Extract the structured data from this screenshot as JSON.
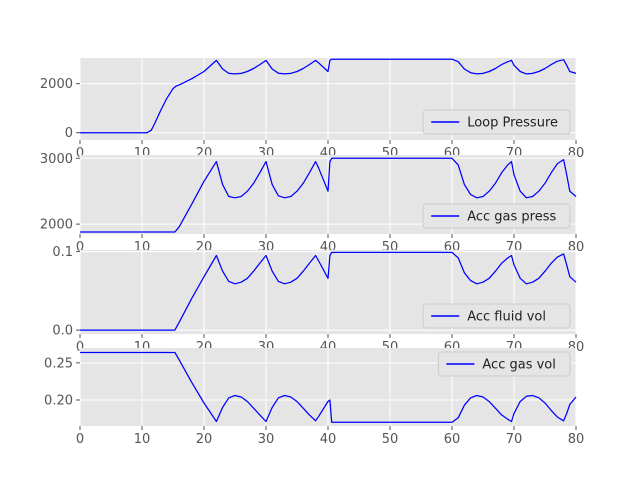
{
  "colors": {
    "series": "#0000ff",
    "panel_background": "#e5e5e5",
    "grid": "#ffffff",
    "tick_text": "#555555"
  },
  "chart_data": [
    {
      "type": "line",
      "name": "loop-pressure",
      "legend": {
        "label": "Loop Pressure",
        "placement": "lower-right"
      },
      "xlim": [
        0,
        80
      ],
      "ylim": [
        -300,
        3050
      ],
      "xticks": [
        0,
        10,
        20,
        30,
        40,
        50,
        60,
        70,
        80
      ],
      "xtick_labels": [
        "0",
        "10",
        "20",
        "30",
        "40",
        "50",
        "60",
        "70",
        "80"
      ],
      "yticks": [
        0,
        2000
      ],
      "ytick_labels": [
        "0",
        "2000"
      ],
      "grid": true,
      "series": [
        {
          "name": "Loop Pressure",
          "x": [
            0,
            10.8,
            11.5,
            12,
            13,
            14,
            15,
            15.5,
            16,
            18,
            20,
            22,
            23,
            24,
            25,
            26,
            27,
            28,
            29,
            30,
            31,
            32,
            33,
            34,
            35,
            36,
            37,
            38,
            38.5,
            40,
            40.3,
            40.6,
            45,
            50,
            55,
            60,
            61,
            62,
            63,
            64,
            65,
            66,
            67,
            68,
            69,
            69.6,
            70,
            71,
            72,
            73,
            74,
            75,
            76,
            77,
            78,
            78.5,
            79,
            80
          ],
          "y": [
            0,
            0,
            100,
            350,
            900,
            1400,
            1800,
            1900,
            1950,
            2200,
            2500,
            2950,
            2600,
            2420,
            2400,
            2420,
            2500,
            2620,
            2780,
            2950,
            2600,
            2430,
            2400,
            2420,
            2500,
            2620,
            2780,
            2950,
            2850,
            2500,
            2950,
            3000,
            3000,
            3000,
            3000,
            3000,
            2900,
            2600,
            2450,
            2400,
            2420,
            2500,
            2620,
            2780,
            2900,
            2950,
            2750,
            2500,
            2400,
            2420,
            2500,
            2620,
            2780,
            2920,
            2980,
            2750,
            2500,
            2420
          ]
        }
      ]
    },
    {
      "type": "line",
      "name": "acc-gas-press",
      "legend": {
        "label": "Acc gas press",
        "placement": "lower-right"
      },
      "xlim": [
        0,
        80
      ],
      "ylim": [
        1850,
        3050
      ],
      "xticks": [
        0,
        10,
        20,
        30,
        40,
        50,
        60,
        70,
        80
      ],
      "xtick_labels": [
        "0",
        "10",
        "20",
        "30",
        "40",
        "50",
        "60",
        "70",
        "80"
      ],
      "yticks": [
        2000,
        3000
      ],
      "ytick_labels": [
        "2000",
        "3000"
      ],
      "grid": true,
      "series": [
        {
          "name": "Acc gas press",
          "x": [
            0,
            15.3,
            16,
            18,
            20,
            22,
            23,
            24,
            25,
            26,
            27,
            28,
            29,
            30,
            31,
            32,
            33,
            34,
            35,
            36,
            37,
            38,
            38.5,
            40,
            40.3,
            40.6,
            45,
            50,
            55,
            60,
            61,
            62,
            63,
            64,
            65,
            66,
            67,
            68,
            69,
            69.6,
            70,
            71,
            72,
            73,
            74,
            75,
            76,
            77,
            78,
            78.5,
            79,
            80
          ],
          "y": [
            1880,
            1880,
            1960,
            2300,
            2650,
            2950,
            2600,
            2420,
            2400,
            2420,
            2500,
            2620,
            2780,
            2950,
            2600,
            2430,
            2400,
            2420,
            2500,
            2620,
            2780,
            2950,
            2850,
            2500,
            2950,
            3000,
            3000,
            3000,
            3000,
            3000,
            2900,
            2600,
            2450,
            2400,
            2420,
            2500,
            2620,
            2780,
            2900,
            2950,
            2750,
            2500,
            2400,
            2420,
            2500,
            2620,
            2780,
            2920,
            2980,
            2750,
            2500,
            2420
          ]
        }
      ]
    },
    {
      "type": "line",
      "name": "acc-fluid-vol",
      "legend": {
        "label": "Acc fluid vol",
        "placement": "lower-right"
      },
      "xlim": [
        0,
        80
      ],
      "ylim": [
        -0.005,
        0.102
      ],
      "xticks": [
        0,
        10,
        20,
        30,
        40,
        50,
        60,
        70,
        80
      ],
      "xtick_labels": [
        "0",
        "10",
        "20",
        "30",
        "40",
        "50",
        "60",
        "70",
        "80"
      ],
      "yticks": [
        0.0,
        0.1
      ],
      "ytick_labels": [
        "0.0",
        "0.1"
      ],
      "grid": true,
      "series": [
        {
          "name": "Acc fluid vol",
          "x": [
            0,
            15.3,
            16,
            18,
            20,
            22,
            23,
            24,
            25,
            26,
            27,
            28,
            29,
            30,
            31,
            32,
            33,
            34,
            35,
            36,
            37,
            38,
            38.5,
            40,
            40.3,
            40.6,
            45,
            50,
            55,
            60,
            61,
            62,
            63,
            64,
            65,
            66,
            67,
            68,
            69,
            69.6,
            70,
            71,
            72,
            73,
            74,
            75,
            76,
            77,
            78,
            78.5,
            79,
            80
          ],
          "y": [
            0,
            0,
            0.01,
            0.04,
            0.068,
            0.095,
            0.075,
            0.062,
            0.059,
            0.061,
            0.066,
            0.075,
            0.085,
            0.095,
            0.075,
            0.062,
            0.059,
            0.061,
            0.066,
            0.075,
            0.085,
            0.095,
            0.088,
            0.066,
            0.095,
            0.099,
            0.099,
            0.099,
            0.099,
            0.099,
            0.092,
            0.073,
            0.063,
            0.059,
            0.061,
            0.066,
            0.075,
            0.085,
            0.092,
            0.095,
            0.083,
            0.066,
            0.059,
            0.061,
            0.066,
            0.075,
            0.085,
            0.093,
            0.097,
            0.083,
            0.068,
            0.061
          ]
        }
      ]
    },
    {
      "type": "line",
      "name": "acc-gas-vol",
      "legend": {
        "label": "Acc gas vol",
        "placement": "upper-right"
      },
      "xlim": [
        0,
        80
      ],
      "ylim": [
        0.165,
        0.27
      ],
      "xticks": [
        0,
        10,
        20,
        30,
        40,
        50,
        60,
        70,
        80
      ],
      "xtick_labels": [
        "0",
        "10",
        "20",
        "30",
        "40",
        "50",
        "60",
        "70",
        "80"
      ],
      "yticks": [
        0.2,
        0.25
      ],
      "ytick_labels": [
        "0.20",
        "0.25"
      ],
      "grid": true,
      "series": [
        {
          "name": "Acc gas vol",
          "x": [
            0,
            15.3,
            16,
            18,
            20,
            22,
            23,
            24,
            25,
            26,
            27,
            28,
            29,
            30,
            31,
            32,
            33,
            34,
            35,
            36,
            37,
            38,
            38.5,
            40,
            40.3,
            40.6,
            45,
            50,
            55,
            60,
            61,
            62,
            63,
            64,
            65,
            66,
            67,
            68,
            69,
            69.6,
            70,
            71,
            72,
            73,
            74,
            75,
            76,
            77,
            78,
            78.5,
            79,
            80
          ],
          "y": [
            0.264,
            0.264,
            0.254,
            0.224,
            0.196,
            0.171,
            0.19,
            0.203,
            0.206,
            0.204,
            0.198,
            0.189,
            0.18,
            0.171,
            0.19,
            0.203,
            0.206,
            0.204,
            0.198,
            0.189,
            0.18,
            0.172,
            0.178,
            0.198,
            0.2,
            0.17,
            0.17,
            0.17,
            0.17,
            0.17,
            0.176,
            0.193,
            0.203,
            0.206,
            0.204,
            0.198,
            0.189,
            0.18,
            0.174,
            0.171,
            0.182,
            0.198,
            0.205,
            0.206,
            0.203,
            0.196,
            0.186,
            0.177,
            0.172,
            0.182,
            0.194,
            0.204
          ]
        }
      ]
    }
  ]
}
